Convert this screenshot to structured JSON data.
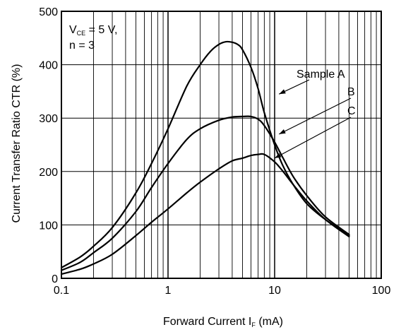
{
  "chart_data": {
    "type": "line",
    "x_scale": "log",
    "xlim": [
      0.1,
      100
    ],
    "ylim": [
      0,
      500
    ],
    "grid": true,
    "x_ticks": [
      {
        "value": 0.1,
        "label": "0.1"
      },
      {
        "value": 1,
        "label": "1"
      },
      {
        "value": 10,
        "label": "10"
      },
      {
        "value": 100,
        "label": "100"
      }
    ],
    "y_ticks": [
      {
        "value": 0,
        "label": "0"
      },
      {
        "value": 100,
        "label": "100"
      },
      {
        "value": 200,
        "label": "200"
      },
      {
        "value": 300,
        "label": "300"
      },
      {
        "value": 400,
        "label": "400"
      },
      {
        "value": 500,
        "label": "500"
      }
    ],
    "xlabel": {
      "main": "Forward Current  I",
      "sub": "F",
      "unit": " (mA)"
    },
    "ylabel": "Current Transfer Ratio  CTR (%)",
    "conditions": {
      "line1_main": "V",
      "line1_sub": "CE",
      "line1_rest": " = 5 V,",
      "line2": "n = 3"
    },
    "series": [
      {
        "name": "Sample A",
        "label_anchor": {
          "x": 11,
          "y": 345
        },
        "x": [
          0.1,
          0.15,
          0.2,
          0.3,
          0.5,
          0.7,
          1,
          1.5,
          2,
          2.5,
          3,
          3.5,
          4,
          4.5,
          5,
          6,
          7,
          8,
          10,
          12,
          15,
          20,
          30,
          50
        ],
        "values": [
          20,
          40,
          60,
          95,
          160,
          215,
          280,
          360,
          400,
          425,
          438,
          443,
          442,
          438,
          428,
          395,
          355,
          310,
          250,
          210,
          175,
          140,
          110,
          80
        ]
      },
      {
        "name": "B",
        "label_anchor": {
          "x": 11,
          "y": 270
        },
        "x": [
          0.1,
          0.15,
          0.2,
          0.3,
          0.5,
          0.7,
          1,
          1.5,
          2,
          3,
          4,
          5,
          6,
          7,
          8,
          10,
          12,
          15,
          20,
          30,
          50
        ],
        "values": [
          15,
          30,
          48,
          75,
          125,
          170,
          215,
          260,
          280,
          296,
          302,
          303,
          303,
          298,
          286,
          255,
          225,
          190,
          155,
          115,
          82
        ]
      },
      {
        "name": "C",
        "label_anchor": {
          "x": 10,
          "y": 225
        },
        "x": [
          0.1,
          0.15,
          0.2,
          0.3,
          0.5,
          0.7,
          1,
          1.5,
          2,
          3,
          4,
          5,
          6,
          7,
          8,
          10,
          12,
          15,
          20,
          30,
          50
        ],
        "values": [
          8,
          17,
          27,
          45,
          80,
          105,
          130,
          160,
          180,
          205,
          220,
          225,
          230,
          232,
          232,
          218,
          200,
          175,
          145,
          110,
          78
        ]
      }
    ]
  }
}
